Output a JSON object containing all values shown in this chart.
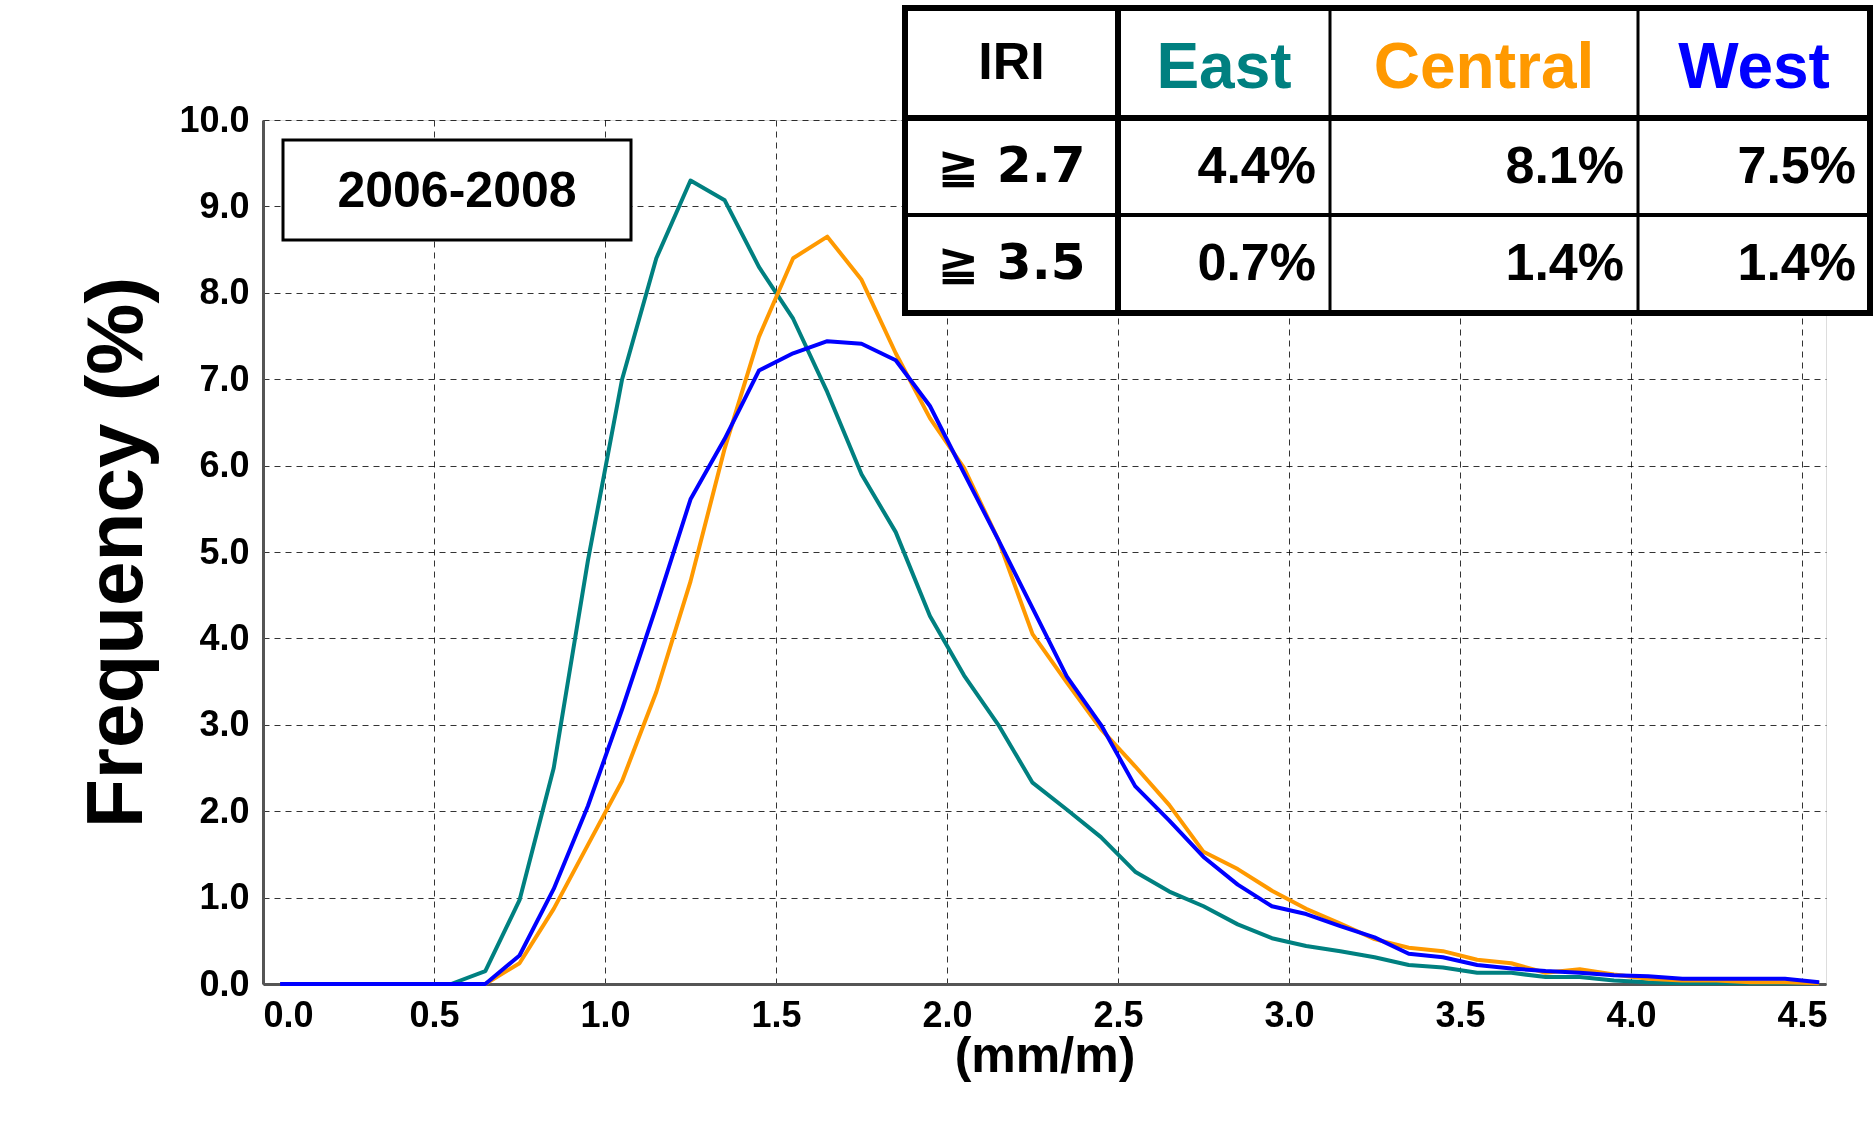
{
  "chart_data": {
    "type": "line",
    "xlabel": "(mm/m)",
    "ylabel": "Frequency (%)",
    "x": [
      0.05,
      0.15,
      0.25,
      0.35,
      0.45,
      0.55,
      0.65,
      0.75,
      0.85,
      0.95,
      1.05,
      1.15,
      1.25,
      1.35,
      1.45,
      1.55,
      1.65,
      1.75,
      1.85,
      1.95,
      2.05,
      2.15,
      2.25,
      2.35,
      2.45,
      2.55,
      2.65,
      2.75,
      2.85,
      2.95,
      3.05,
      3.15,
      3.25,
      3.35,
      3.45,
      3.55,
      3.65,
      3.75,
      3.85,
      3.95,
      4.05,
      4.15,
      4.25,
      4.35,
      4.45,
      4.55
    ],
    "series": [
      {
        "name": "East",
        "color": "#008080",
        "values": [
          null,
          null,
          null,
          null,
          null,
          0,
          0.15,
          0.97,
          2.5,
          4.9,
          7.0,
          8.4,
          9.3,
          9.07,
          8.3,
          7.7,
          6.85,
          5.9,
          5.23,
          4.26,
          3.57,
          3.0,
          2.33,
          2.02,
          1.7,
          1.3,
          1.07,
          0.9,
          0.69,
          0.53,
          0.44,
          0.38,
          0.31,
          0.22,
          0.19,
          0.13,
          0.13,
          0.08,
          0.08,
          0.04,
          0.02,
          0.01,
          0.01,
          0.01,
          0.01,
          0.01
        ]
      },
      {
        "name": "Central",
        "color": "#ff9900",
        "values": [
          null,
          null,
          null,
          null,
          null,
          0,
          0,
          0.24,
          0.87,
          1.61,
          2.35,
          3.38,
          4.66,
          6.2,
          7.49,
          8.4,
          8.65,
          8.15,
          7.3,
          6.55,
          5.97,
          5.14,
          4.05,
          3.49,
          2.95,
          2.52,
          2.07,
          1.53,
          1.33,
          1.08,
          0.87,
          0.7,
          0.52,
          0.42,
          0.38,
          0.28,
          0.24,
          0.13,
          0.17,
          0.11,
          0.06,
          0.04,
          0.04,
          0.02,
          0.02,
          0.01
        ]
      },
      {
        "name": "West",
        "color": "#0000ff",
        "values": [
          0,
          0,
          0,
          0,
          0,
          0,
          0,
          0.33,
          1.1,
          2.06,
          3.18,
          4.37,
          5.61,
          6.31,
          7.1,
          7.3,
          7.44,
          7.41,
          7.22,
          6.69,
          5.91,
          5.14,
          4.35,
          3.56,
          3.0,
          2.29,
          1.89,
          1.47,
          1.15,
          0.9,
          0.81,
          0.67,
          0.54,
          0.35,
          0.31,
          0.22,
          0.18,
          0.15,
          0.13,
          0.1,
          0.09,
          0.06,
          0.06,
          0.06,
          0.06,
          0.02
        ]
      }
    ],
    "xlim": [
      0,
      4.57
    ],
    "xticks": [
      {
        "value": 0,
        "label": "0.0"
      },
      0.5,
      {
        "value": 1,
        "label": "1.0"
      },
      1.5,
      {
        "value": 2,
        "label": "2.0"
      },
      2.5,
      {
        "value": 3,
        "label": "3.0"
      },
      3.5,
      {
        "value": 4,
        "label": "4.0"
      },
      4.5
    ],
    "ylim": [
      0,
      10
    ],
    "yticks": [
      {
        "value": 0,
        "label": "0.0"
      },
      {
        "value": 1,
        "label": "1.0"
      },
      {
        "value": 2,
        "label": "2.0"
      },
      {
        "value": 3,
        "label": "3.0"
      },
      {
        "value": 4,
        "label": "4.0"
      },
      {
        "value": 5,
        "label": "5.0"
      },
      {
        "value": 6,
        "label": "6.0"
      },
      {
        "value": 7,
        "label": "7.0"
      },
      {
        "value": 8,
        "label": "8.0"
      },
      {
        "value": 9,
        "label": "9.0"
      },
      {
        "value": 10,
        "label": "10.0"
      }
    ],
    "grid": true,
    "legend": false,
    "line_style": "solid",
    "marker": "none",
    "annotations": [
      "2006-2008",
      "IRI",
      "≧ 2.7",
      "4.4%",
      "8.1%",
      "7.5%",
      "≧ 3.5",
      "0.7%",
      "1.4%",
      "1.4%"
    ]
  }
}
